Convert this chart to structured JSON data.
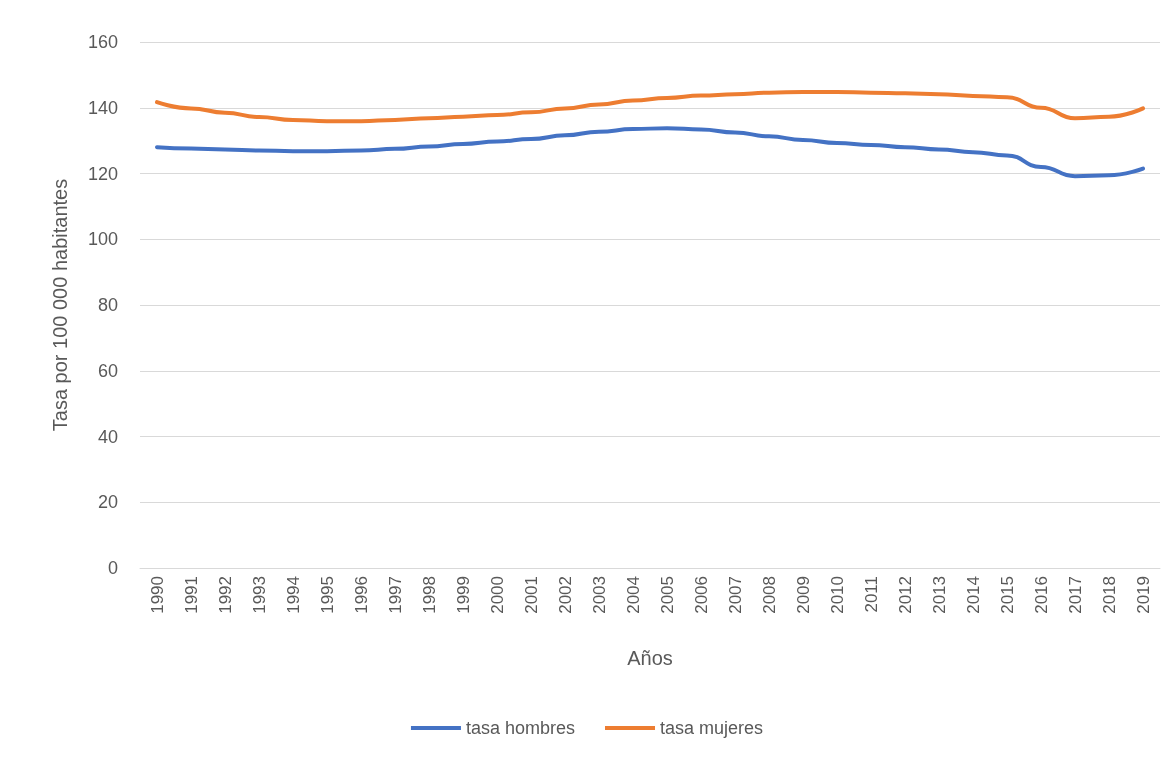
{
  "chart_data": {
    "type": "line",
    "xlabel": "Años",
    "ylabel": "Tasa por 100 000 habitantes",
    "categories": [
      "1990",
      "1991",
      "1992",
      "1993",
      "1994",
      "1995",
      "1996",
      "1997",
      "1998",
      "1999",
      "2000",
      "2001",
      "2002",
      "2003",
      "2004",
      "2005",
      "2006",
      "2007",
      "2008",
      "2009",
      "2010",
      "2011",
      "2012",
      "2013",
      "2014",
      "2015",
      "2016",
      "2017",
      "2018",
      "2019"
    ],
    "series": [
      {
        "name": "tasa hombres",
        "color": "#4472c4",
        "values": [
          128,
          127.6,
          127.3,
          127,
          126.8,
          126.8,
          127,
          127.5,
          128.2,
          129,
          129.7,
          130.5,
          131.6,
          132.7,
          133.5,
          133.8,
          133.4,
          132.5,
          131.3,
          130.2,
          129.3,
          128.7,
          128,
          127.3,
          126.5,
          125.5,
          122,
          119.2,
          119.5,
          121.5
        ]
      },
      {
        "name": "tasa mujeres",
        "color": "#ed7d31",
        "values": [
          141.7,
          139.8,
          138.5,
          137.2,
          136.3,
          135.9,
          135.9,
          136.3,
          136.8,
          137.3,
          137.8,
          138.6,
          139.8,
          141,
          142.2,
          143,
          143.7,
          144.1,
          144.6,
          144.8,
          144.8,
          144.6,
          144.4,
          144.1,
          143.6,
          143.2,
          140,
          136.8,
          137.3,
          139.8
        ]
      }
    ],
    "ylim": [
      0,
      160
    ],
    "yticks": [
      0,
      20,
      40,
      60,
      80,
      100,
      120,
      140,
      160
    ],
    "grid": "y",
    "legend": "bottom",
    "marker": "none",
    "line_style": "solid"
  }
}
